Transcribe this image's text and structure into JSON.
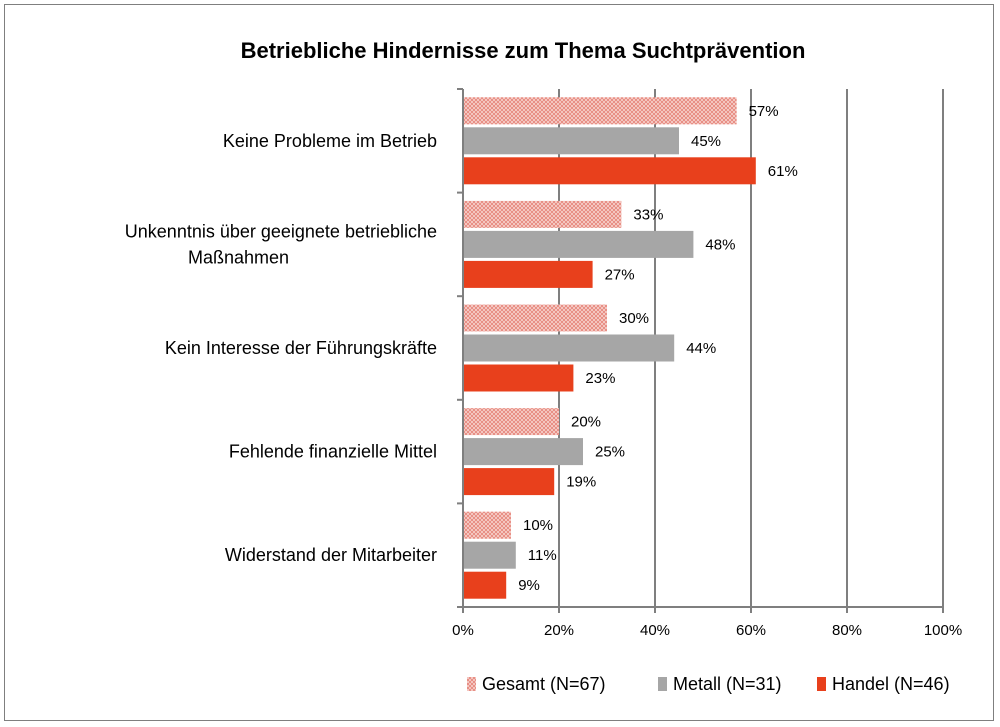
{
  "chart_data": {
    "type": "bar",
    "orientation": "horizontal",
    "title": "Betriebliche Hindernisse zum Thema Suchtprävention",
    "categories": [
      [
        "Keine Probleme im Betrieb"
      ],
      [
        "Unkenntnis über geeignete betriebliche",
        "Maßnahmen"
      ],
      [
        "Kein Interesse der Führungskräfte"
      ],
      [
        "Fehlende finanzielle Mittel"
      ],
      [
        "Widerstand der Mitarbeiter"
      ]
    ],
    "series": [
      {
        "name": "Gesamt (N=67)",
        "values": [
          57,
          33,
          30,
          20,
          10
        ],
        "labels": [
          "57%",
          "33%",
          "30%",
          "20%",
          "10%"
        ],
        "color": "#f4c6c0",
        "pattern": "dotted",
        "dot_color": "#e06a5c"
      },
      {
        "name": "Metall (N=31)",
        "values": [
          45,
          48,
          44,
          25,
          11
        ],
        "labels": [
          "45%",
          "48%",
          "44%",
          "25%",
          "11%"
        ],
        "color": "#a6a6a6"
      },
      {
        "name": "Handel (N=46)",
        "values": [
          61,
          27,
          23,
          19,
          9
        ],
        "labels": [
          "61%",
          "27%",
          "23%",
          "19%",
          "9%"
        ],
        "color": "#e8401c"
      }
    ],
    "xlim": [
      0,
      100
    ],
    "xticks": [
      0,
      20,
      40,
      60,
      80,
      100
    ],
    "xtick_labels": [
      "0%",
      "20%",
      "40%",
      "60%",
      "80%",
      "100%"
    ],
    "grid": true,
    "legend_position": "bottom-right"
  }
}
